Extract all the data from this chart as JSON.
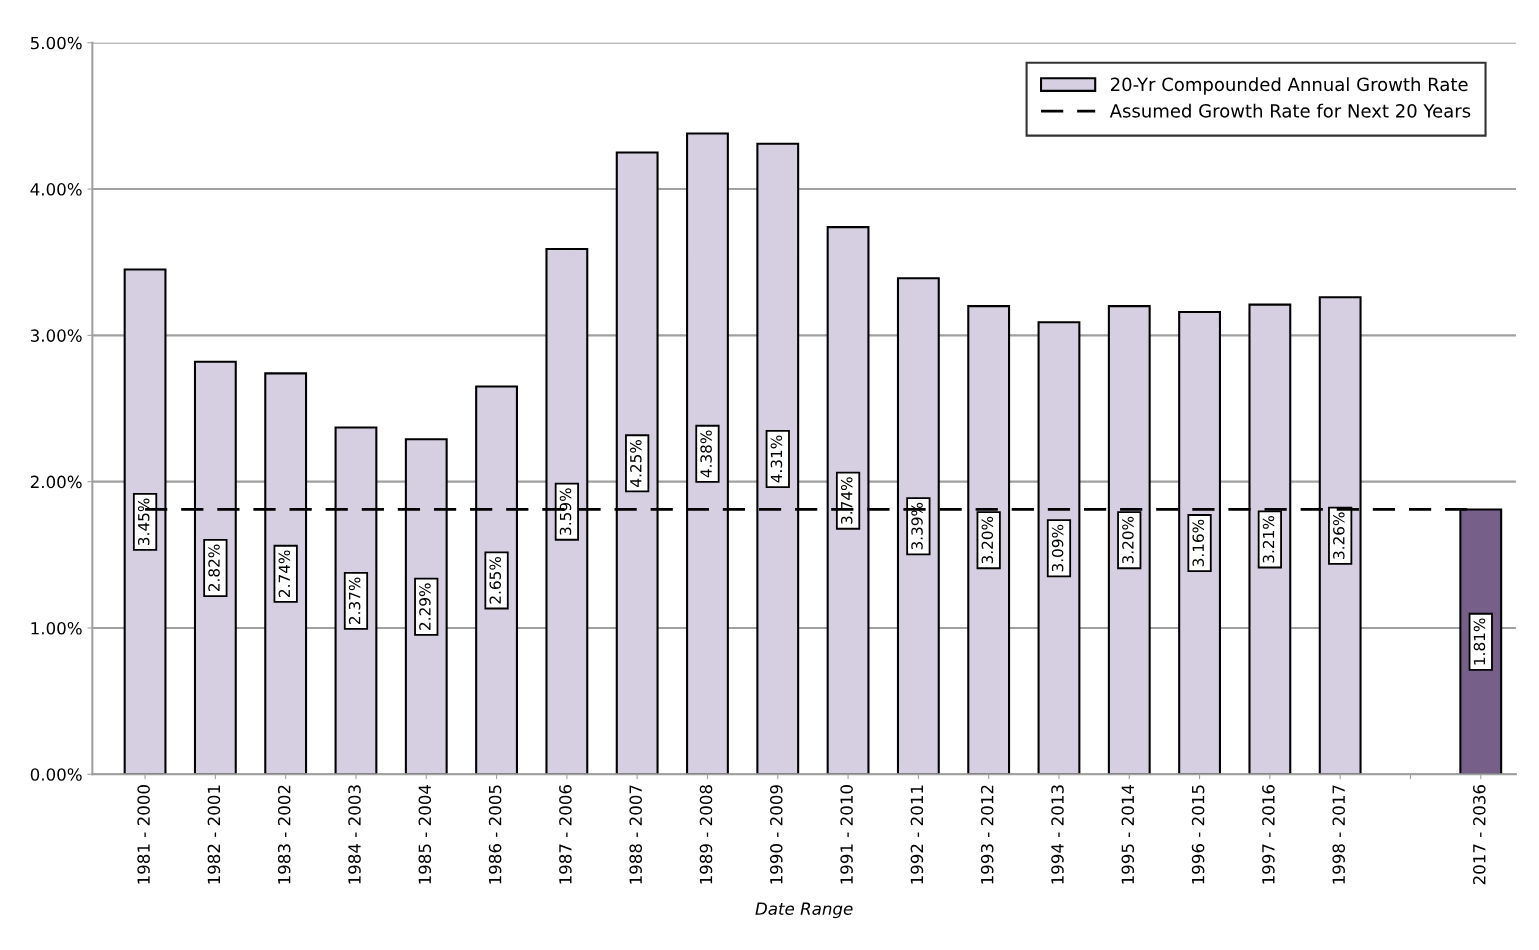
{
  "chart_data": {
    "type": "bar",
    "xlabel": "Date Range",
    "categories": [
      "1981 - 2000",
      "1982 - 2001",
      "1983 - 2002",
      "1984 - 2003",
      "1985 - 2004",
      "1986 - 2005",
      "1987 - 2006",
      "1988 - 2007",
      "1989 - 2008",
      "1990 - 2009",
      "1991 - 2010",
      "1992 - 2011",
      "1993 - 2012",
      "1994 - 2013",
      "1995 - 2014",
      "1996 - 2015",
      "1997 - 2016",
      "1998 - 2017",
      null,
      "2017 - 2036"
    ],
    "series": [
      {
        "name": "20-Yr Compounded Annual Growth Rate",
        "colors": [
          "#d6cfe2",
          "#d6cfe2",
          "#d6cfe2",
          "#d6cfe2",
          "#d6cfe2",
          "#d6cfe2",
          "#d6cfe2",
          "#d6cfe2",
          "#d6cfe2",
          "#d6cfe2",
          "#d6cfe2",
          "#d6cfe2",
          "#d6cfe2",
          "#d6cfe2",
          "#d6cfe2",
          "#d6cfe2",
          "#d6cfe2",
          "#d6cfe2",
          null,
          "#76608a"
        ],
        "color": "#d6cfe2",
        "values": [
          3.45,
          2.82,
          2.74,
          2.37,
          2.29,
          2.65,
          3.59,
          4.25,
          4.38,
          4.31,
          3.74,
          3.39,
          3.2,
          3.09,
          3.2,
          3.16,
          3.21,
          3.26,
          null,
          1.81
        ],
        "value_labels": [
          "3.45%",
          "2.82%",
          "2.74%",
          "2.37%",
          "2.29%",
          "2.65%",
          "3.59%",
          "4.25%",
          "4.38%",
          "4.31%",
          "3.74%",
          "3.39%",
          "3.20%",
          "3.09%",
          "3.20%",
          "3.16%",
          "3.21%",
          "3.26%",
          null,
          "1.81%"
        ]
      },
      {
        "name": "Assumed Growth Rate for Next 20 Years",
        "type": "line",
        "color": "#000000",
        "line_style": "dashed",
        "marker": "none",
        "values": [
          1.81,
          1.81,
          1.81,
          1.81,
          1.81,
          1.81,
          1.81,
          1.81,
          1.81,
          1.81,
          1.81,
          1.81,
          1.81,
          1.81,
          1.81,
          1.81,
          1.81,
          1.81,
          1.81,
          1.81
        ]
      }
    ],
    "ylim": [
      0,
      5
    ],
    "yticks": [
      {
        "value": 0,
        "label": "0.00%"
      },
      {
        "value": 1,
        "label": "1.00%"
      },
      {
        "value": 2,
        "label": "2.00%"
      },
      {
        "value": 3,
        "label": "3.00%"
      },
      {
        "value": 4,
        "label": "4.00%"
      },
      {
        "value": 5,
        "label": "5.00%"
      }
    ],
    "grid": "y",
    "legend": "top right"
  }
}
